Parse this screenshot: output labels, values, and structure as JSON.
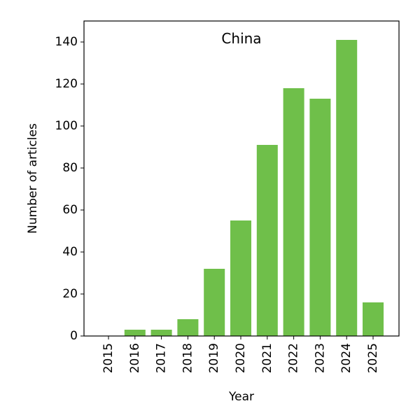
{
  "chart_data": {
    "type": "bar",
    "title": "China",
    "xlabel": "Year",
    "ylabel": "Number of articles",
    "categories": [
      "2015",
      "2016",
      "2017",
      "2018",
      "2019",
      "2020",
      "2021",
      "2022",
      "2023",
      "2024",
      "2025"
    ],
    "values": [
      0,
      3,
      3,
      8,
      32,
      55,
      91,
      118,
      113,
      141,
      16
    ],
    "ylim": [
      0,
      150
    ],
    "yticks": [
      0,
      20,
      40,
      60,
      80,
      100,
      120,
      140
    ],
    "bar_color": "#6fbf4a",
    "grid": false,
    "legend": "none",
    "title_position": "inside-top-center",
    "xtick_rotation": "vertical"
  }
}
